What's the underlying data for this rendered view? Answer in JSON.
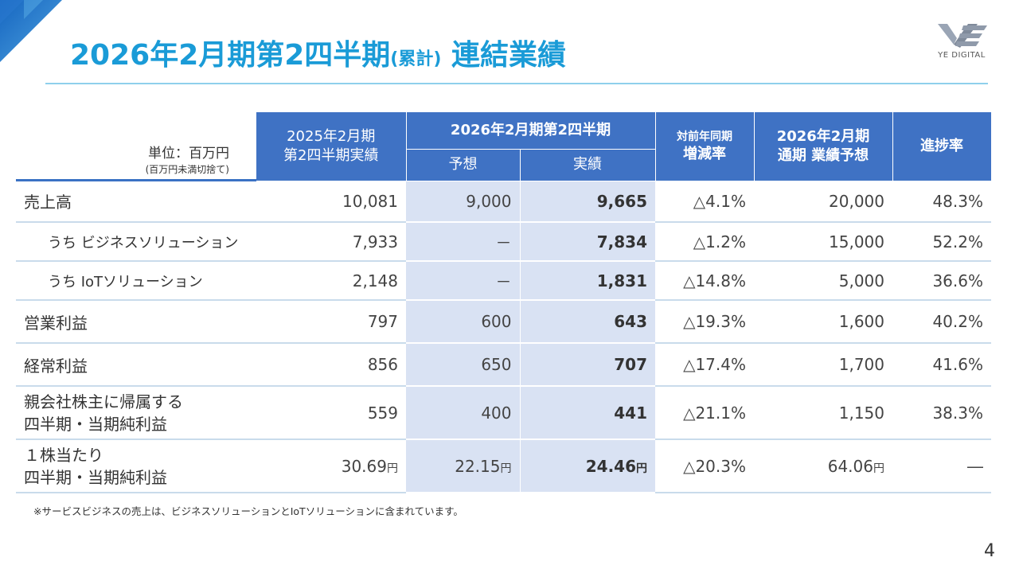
{
  "header": {
    "title_main": "2026年2月期第2四半期",
    "title_paren": "(累計)",
    "title_tail": "連結業績",
    "logo_text": "YE DIGITAL",
    "accent_color": "#1a9bd7",
    "table_header_color": "#3f72c4"
  },
  "unit": {
    "main": "単位：百万円",
    "sub": "(百万円未満切捨て)"
  },
  "table": {
    "headers": {
      "prev_line1": "2025年2月期",
      "prev_line2": "第2四半期実績",
      "current_group": "2026年2月期第2四半期",
      "forecast": "予想",
      "actual": "実績",
      "yoy_line1": "対前年同期",
      "yoy_line2": "増減率",
      "full_line1": "2026年2月期",
      "full_line2": "通期 業績予想",
      "progress": "進捗率"
    },
    "rows": [
      {
        "label1": "売上高",
        "label2": "",
        "prev": "10,081",
        "forecast": "9,000",
        "actual": "9,665",
        "yoy": "△4.1%",
        "full": "20,000",
        "progress": "48.3%"
      },
      {
        "label1": "うち  ビジネスソリューション",
        "label2": "",
        "prev": "7,933",
        "forecast": "－",
        "actual": "7,834",
        "yoy": "△1.2%",
        "full": "15,000",
        "progress": "52.2%"
      },
      {
        "label1": "うち  IoTソリューション",
        "label2": "",
        "prev": "2,148",
        "forecast": "－",
        "actual": "1,831",
        "yoy": "△14.8%",
        "full": "5,000",
        "progress": "36.6%"
      },
      {
        "label1": "営業利益",
        "label2": "",
        "prev": "797",
        "forecast": "600",
        "actual": "643",
        "yoy": "△19.3%",
        "full": "1,600",
        "progress": "40.2%"
      },
      {
        "label1": "経常利益",
        "label2": "",
        "prev": "856",
        "forecast": "650",
        "actual": "707",
        "yoy": "△17.4%",
        "full": "1,700",
        "progress": "41.6%"
      },
      {
        "label1": "親会社株主に帰属する",
        "label2": "四半期・当期純利益",
        "prev": "559",
        "forecast": "400",
        "actual": "441",
        "yoy": "△21.1%",
        "full": "1,150",
        "progress": "38.3%"
      },
      {
        "label1": "１株当たり",
        "label2": "四半期・当期純利益",
        "prev": "30.69",
        "forecast": "22.15",
        "actual": "24.46",
        "yoy": "△20.3%",
        "full": "64.06",
        "progress": "―",
        "unit": "円"
      }
    ]
  },
  "footnote": "※サービスビジネスの売上は、ビジネスソリューションとIoTソリューションに含まれています。",
  "page_number": "4"
}
